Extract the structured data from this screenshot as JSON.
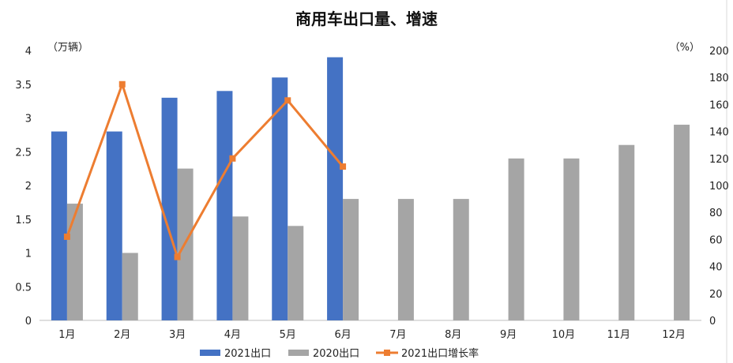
{
  "chart_data": {
    "type": "bar",
    "title": "商用车出口量、增速",
    "categories": [
      "1月",
      "2月",
      "3月",
      "4月",
      "5月",
      "6月",
      "7月",
      "8月",
      "9月",
      "10月",
      "11月",
      "12月"
    ],
    "left_axis": {
      "unit": "（万辆）",
      "ylim": [
        0,
        4
      ],
      "ticks": [
        "0",
        "0.5",
        "1",
        "1.5",
        "2",
        "2.5",
        "3",
        "3.5",
        "4"
      ]
    },
    "right_axis": {
      "unit": "（%）",
      "ylim": [
        0,
        200
      ],
      "ticks": [
        "0",
        "20",
        "40",
        "60",
        "80",
        "100",
        "120",
        "140",
        "160",
        "180",
        "200"
      ]
    },
    "series": [
      {
        "name": "2021出口",
        "type": "bar",
        "axis": "left",
        "color": "#4472C4",
        "values": [
          2.8,
          2.8,
          3.3,
          3.4,
          3.6,
          3.9,
          null,
          null,
          null,
          null,
          null,
          null
        ]
      },
      {
        "name": "2020出口",
        "type": "bar",
        "axis": "left",
        "color": "#A5A5A5",
        "values": [
          1.73,
          1.0,
          2.25,
          1.54,
          1.4,
          1.8,
          1.8,
          1.8,
          2.4,
          2.4,
          2.6,
          2.9
        ]
      },
      {
        "name": "2021出口增长率",
        "type": "line",
        "axis": "right",
        "color": "#ED7D31",
        "values": [
          62,
          175,
          47,
          120,
          163,
          114,
          null,
          null,
          null,
          null,
          null,
          null
        ]
      }
    ],
    "legend_position": "bottom",
    "grid": false
  }
}
